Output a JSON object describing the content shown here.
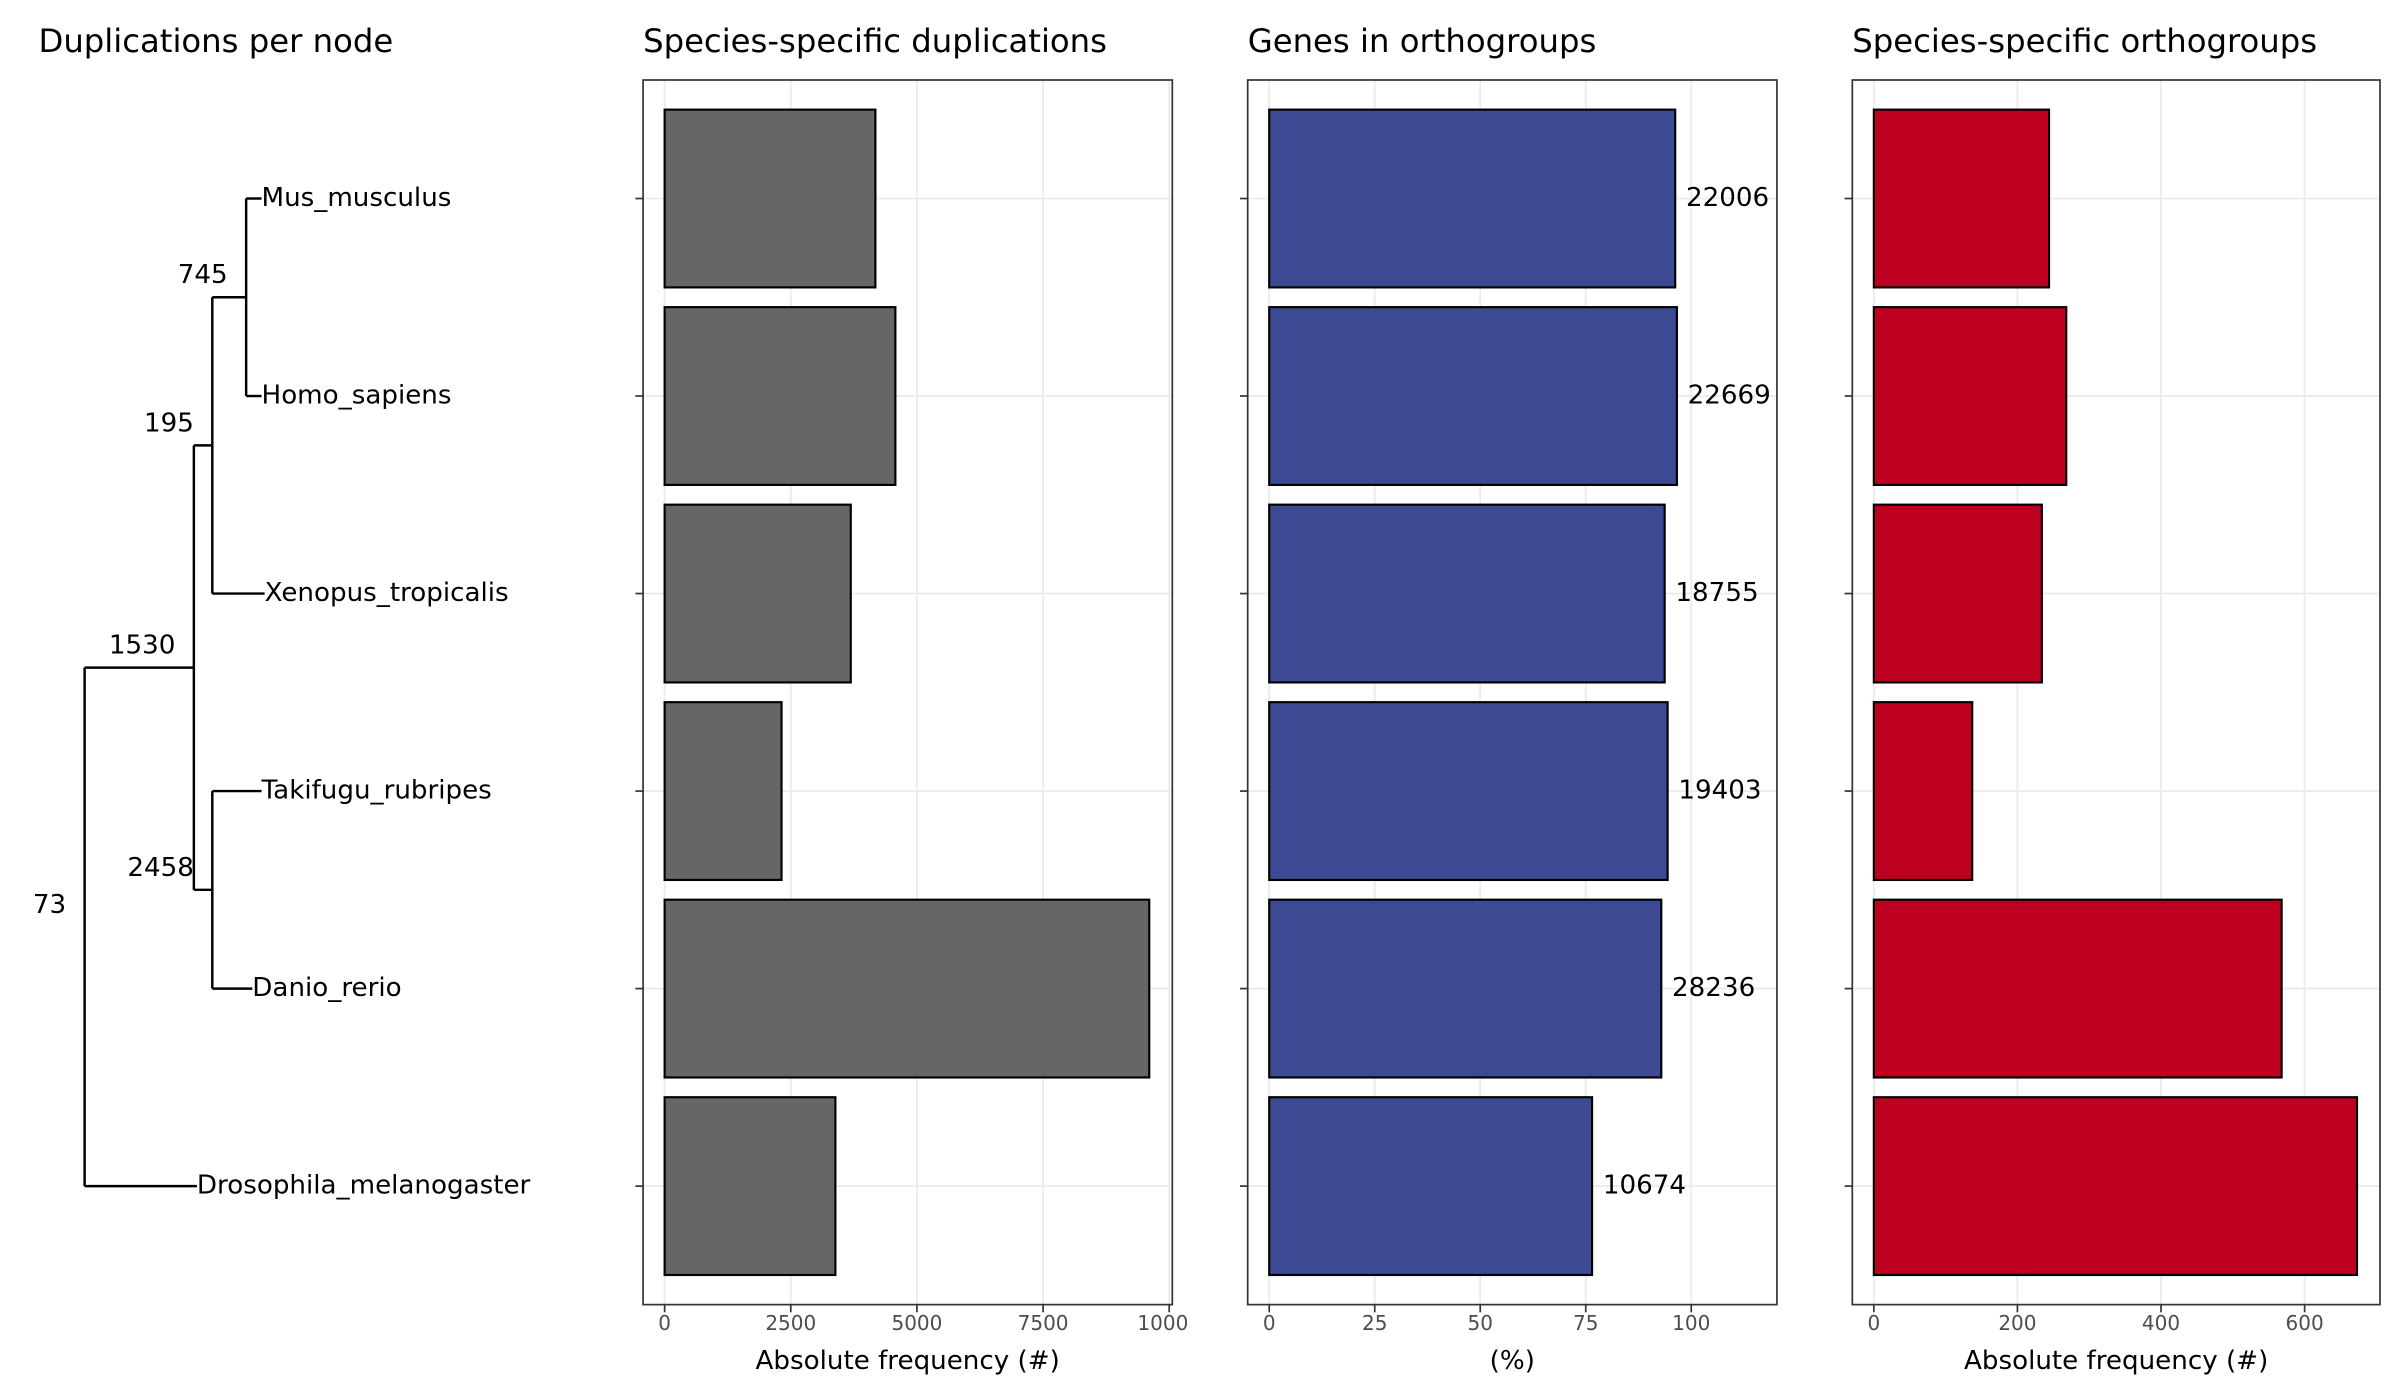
{
  "chart_data": [
    {
      "type": "tree",
      "title": "Duplications per node",
      "leaves": [
        "Mus_musculus",
        "Homo_sapiens",
        "Xenopus_tropicalis",
        "Takifugu_rubripes",
        "Danio_rerio",
        "Drosophila_melanogaster"
      ],
      "node_labels": [
        745,
        195,
        2458,
        1530,
        73
      ]
    },
    {
      "type": "bar",
      "title": "Species-specific duplications",
      "x_label": "Absolute frequency (#)",
      "values": [
        4177,
        4573,
        3689,
        2317,
        9604,
        3384
      ],
      "color": "#666666",
      "xlim": [
        -427,
        10061
      ],
      "xticks": [
        0,
        2500,
        5000,
        7500,
        10000
      ],
      "grid": true
    },
    {
      "type": "bar",
      "title": "Genes in orthogroups",
      "x_label": "(%)",
      "values": [
        96.2,
        96.6,
        93.7,
        94.4,
        92.9,
        76.5
      ],
      "color": "#3C4A93",
      "bar_labels": [
        22006,
        22669,
        18755,
        19403,
        28236,
        10674
      ],
      "xlim": [
        -5.1,
        120.3
      ],
      "xticks": [
        0,
        25,
        50,
        75,
        100
      ],
      "grid": true
    },
    {
      "type": "bar",
      "title": "Species-specific orthogroups",
      "x_label": "Absolute frequency (#)",
      "values": [
        244,
        268,
        234,
        137,
        568,
        673
      ],
      "color": "#BD0020",
      "xlim": [
        -30,
        705
      ],
      "xticks": [
        0,
        200,
        400,
        600
      ],
      "grid": true
    }
  ]
}
